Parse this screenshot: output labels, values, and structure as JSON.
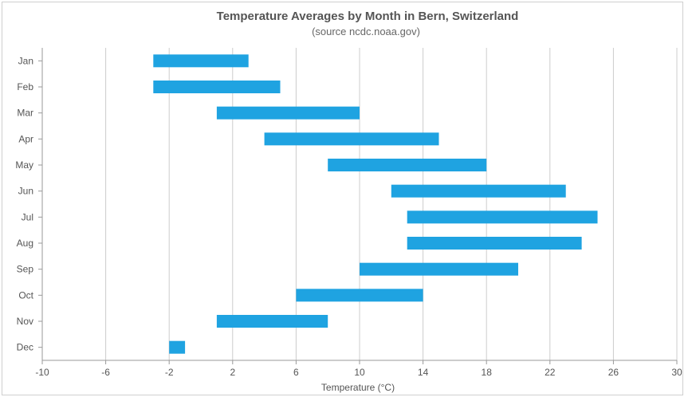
{
  "chart_data": {
    "type": "bar",
    "orientation": "horizontal-range",
    "title": "Temperature Averages by Month in Bern, Switzerland",
    "subtitle": "(source ncdc.noaa.gov)",
    "xlabel": "Temperature (°C)",
    "ylabel": "",
    "xlim": [
      -10,
      30
    ],
    "x_ticks": [
      "-10",
      "-6",
      "-2",
      "2",
      "6",
      "10",
      "14",
      "18",
      "22",
      "26",
      "30"
    ],
    "grid": true,
    "legend": "none",
    "categories": [
      "Jan",
      "Feb",
      "Mar",
      "Apr",
      "May",
      "Jun",
      "Jul",
      "Aug",
      "Sep",
      "Oct",
      "Nov",
      "Dec"
    ],
    "series": [
      {
        "color": "#1fa3e1",
        "low": [
          -3,
          -3,
          1,
          4,
          8,
          12,
          13,
          13,
          10,
          6,
          1,
          -2
        ],
        "high": [
          3,
          5,
          10,
          15,
          18,
          23,
          25,
          24,
          20,
          14,
          8,
          -1
        ]
      }
    ]
  }
}
